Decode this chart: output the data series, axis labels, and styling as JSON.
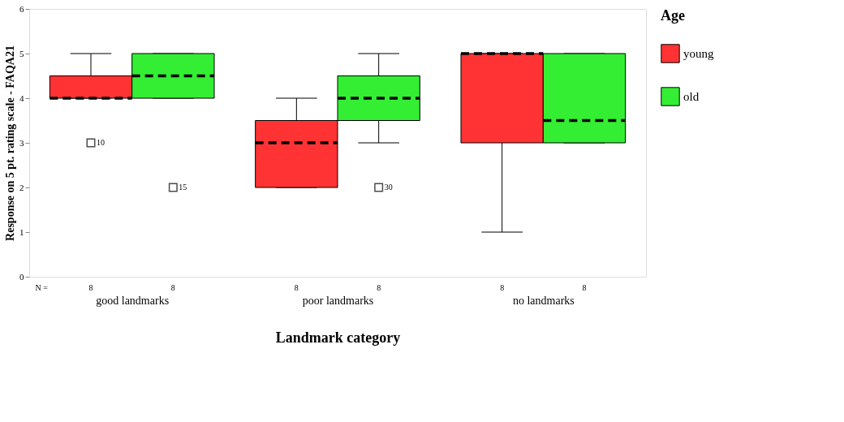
{
  "chart_data": {
    "type": "box",
    "xlabel": "Landmark category",
    "ylabel": "Response on 5 pt. rating scale - FAQA21",
    "legend_title": "Age",
    "categories": [
      "good landmarks",
      "poor landmarks",
      "no landmarks"
    ],
    "ylim": [
      0,
      6
    ],
    "yticks": [
      0,
      1,
      2,
      3,
      4,
      5,
      6
    ],
    "grid": false,
    "legend": "right",
    "line_style": "dashed",
    "series": [
      {
        "name": "young",
        "color": "#ff3333",
        "boxes": [
          {
            "low": 4,
            "q1": 4,
            "median": 4,
            "q3": 4.5,
            "high": 5,
            "outliers": [
              3
            ]
          },
          {
            "low": 2,
            "q1": 2,
            "median": 3,
            "q3": 3.5,
            "high": 4
          },
          {
            "low": 1,
            "q1": 3,
            "median": 5,
            "q3": 5,
            "high": 5
          }
        ]
      },
      {
        "name": "old",
        "color": "#33ee33",
        "boxes": [
          {
            "low": 4,
            "q1": 4,
            "median": 4.5,
            "q3": 5,
            "high": 5,
            "outliers": [
              2
            ]
          },
          {
            "low": 3,
            "q1": 3.5,
            "median": 4,
            "q3": 4.5,
            "high": 5,
            "outliers": [
              2
            ]
          },
          {
            "low": 3,
            "q1": 3,
            "median": 3.5,
            "q3": 5,
            "high": 5
          }
        ]
      }
    ],
    "annotations": [
      "N =",
      "8",
      "8",
      "8",
      "8",
      "8",
      "8",
      "10",
      "15",
      "30"
    ]
  }
}
